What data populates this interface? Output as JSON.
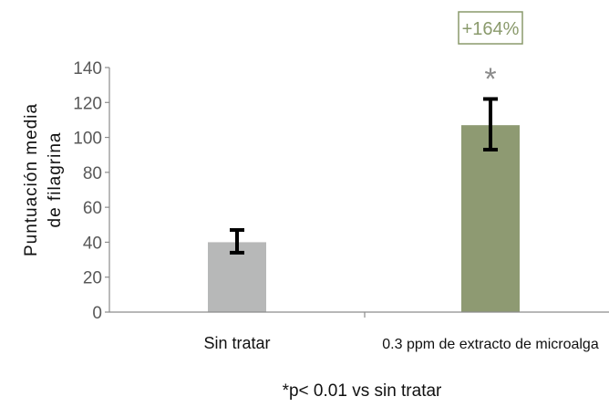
{
  "chart_data": {
    "type": "bar",
    "categories": [
      "Sin tratar",
      "0.3 ppm de extracto de microalga"
    ],
    "values": [
      40,
      107
    ],
    "error_low": [
      34,
      93
    ],
    "error_high": [
      47,
      122
    ],
    "bar_colors": [
      "#b7b8b8",
      "#8e9a72"
    ],
    "ylabel_line1": "Puntuación media",
    "ylabel_line2": "de filagrina",
    "ylim": [
      0,
      140
    ],
    "yticks": [
      0,
      20,
      40,
      60,
      80,
      100,
      120,
      140
    ],
    "grid": false,
    "significance_marker": "*",
    "annotation": "+164%",
    "annotation_color": "#8a9a6c",
    "footnote": "*p< 0.01 vs sin tratar"
  }
}
